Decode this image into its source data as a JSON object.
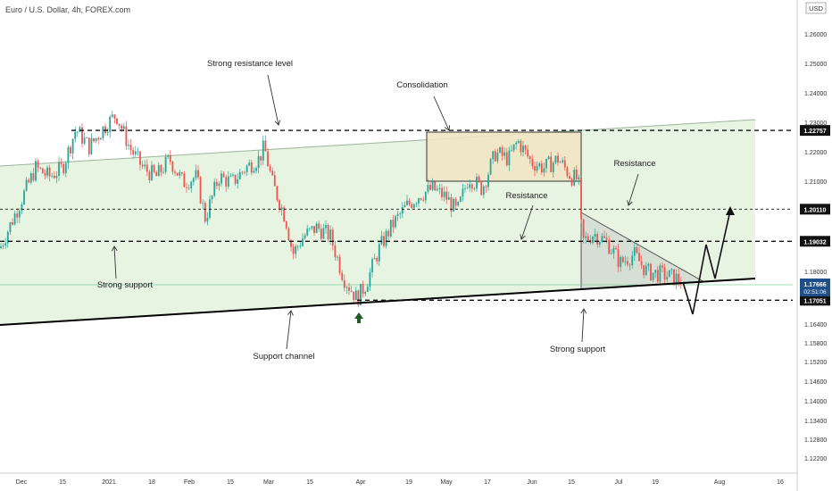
{
  "header": {
    "title": "Euro / U.S. Dollar, 4h, FOREX.com",
    "currency": "USD"
  },
  "colors": {
    "channel_fill": "#e3f2dc",
    "consolidation_fill": "#f0e6c4",
    "candle_up": "#26a69a",
    "candle_down": "#ef5350",
    "triangle_fill": "#cfd6cf"
  },
  "chart_data": {
    "type": "candlestick",
    "symbol": "EURUSD",
    "timeframe": "4h",
    "y_axis": {
      "min": 1.119,
      "max": 1.268,
      "ticks": [
        "1.26000",
        "1.25000",
        "1.24000",
        "1.23000",
        "1.22000",
        "1.21000",
        "1.20000",
        "1.19000",
        "1.18000",
        "1.17000",
        "1.16400",
        "1.15800",
        "1.15200",
        "1.14600",
        "1.14000",
        "1.13400",
        "1.12800",
        "1.12200"
      ]
    },
    "x_axis": {
      "ticks": [
        "Dec",
        "15",
        "2021",
        "18",
        "Feb",
        "15",
        "Mar",
        "15",
        "Apr",
        "19",
        "May",
        "17",
        "Jun",
        "15",
        "Jul",
        "19",
        "Aug",
        "16"
      ]
    },
    "price_levels": [
      {
        "label": "1.22757",
        "value": 1.22757
      },
      {
        "label": "1.20110",
        "value": 1.2011
      },
      {
        "label": "1.19032",
        "value": 1.19032
      },
      {
        "label": "1.17051",
        "value": 1.17051
      }
    ],
    "current_price": {
      "label": "1.17666",
      "timer": "02:51:06"
    },
    "close_path": [
      [
        0,
        1.188
      ],
      [
        25,
        1.205
      ],
      [
        40,
        1.215
      ],
      [
        55,
        1.212
      ],
      [
        70,
        1.215
      ],
      [
        85,
        1.228
      ],
      [
        100,
        1.222
      ],
      [
        115,
        1.228
      ],
      [
        130,
        1.233
      ],
      [
        145,
        1.222
      ],
      [
        160,
        1.215
      ],
      [
        175,
        1.212
      ],
      [
        190,
        1.218
      ],
      [
        205,
        1.21
      ],
      [
        220,
        1.212
      ],
      [
        230,
        1.198
      ],
      [
        245,
        1.212
      ],
      [
        260,
        1.21
      ],
      [
        275,
        1.215
      ],
      [
        290,
        1.218
      ],
      [
        296,
        1.222
      ],
      [
        305,
        1.21
      ],
      [
        320,
        1.198
      ],
      [
        328,
        1.186
      ],
      [
        340,
        1.192
      ],
      [
        355,
        1.195
      ],
      [
        370,
        1.192
      ],
      [
        385,
        1.178
      ],
      [
        400,
        1.171
      ],
      [
        410,
        1.176
      ],
      [
        425,
        1.188
      ],
      [
        440,
        1.196
      ],
      [
        455,
        1.202
      ],
      [
        470,
        1.206
      ],
      [
        485,
        1.208
      ],
      [
        500,
        1.205
      ],
      [
        512,
        1.2
      ],
      [
        525,
        1.212
      ],
      [
        540,
        1.208
      ],
      [
        555,
        1.22
      ],
      [
        570,
        1.218
      ],
      [
        580,
        1.224
      ],
      [
        595,
        1.217
      ],
      [
        610,
        1.215
      ],
      [
        625,
        1.218
      ],
      [
        640,
        1.212
      ],
      [
        648,
        1.211
      ],
      [
        652,
        1.19
      ],
      [
        665,
        1.193
      ],
      [
        680,
        1.19
      ],
      [
        695,
        1.183
      ],
      [
        710,
        1.186
      ],
      [
        725,
        1.18
      ],
      [
        745,
        1.179
      ],
      [
        765,
        1.177
      ]
    ],
    "annotations": [
      {
        "text": "Strong resistance level"
      },
      {
        "text": "Consolidation"
      },
      {
        "text": "Resistance",
        "id": "res1"
      },
      {
        "text": "Resistance",
        "id": "res2"
      },
      {
        "text": "Strong support",
        "id": "sup1"
      },
      {
        "text": "Support channel"
      },
      {
        "text": "Strong support",
        "id": "sup2"
      }
    ]
  }
}
